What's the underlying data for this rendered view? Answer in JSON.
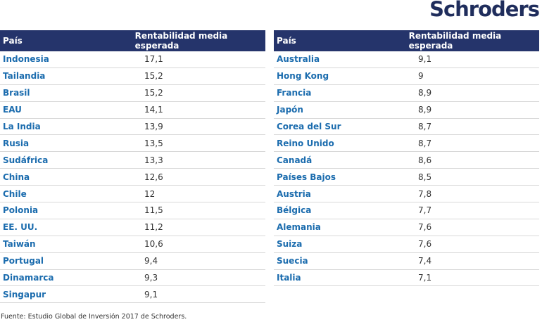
{
  "header": {
    "logo": "Schroders"
  },
  "tables": [
    {
      "columns": [
        "País",
        "Rentabilidad media esperada"
      ],
      "rows": [
        [
          "Indonesia",
          "17,1"
        ],
        [
          "Tailandia",
          "15,2"
        ],
        [
          "Brasil",
          "15,2"
        ],
        [
          "EAU",
          "14,1"
        ],
        [
          "La India",
          "13,9"
        ],
        [
          "Rusia",
          "13,5"
        ],
        [
          "Sudáfrica",
          "13,3"
        ],
        [
          "China",
          "12,6"
        ],
        [
          "Chile",
          "12"
        ],
        [
          "Polonia",
          "11,5"
        ],
        [
          "EE. UU.",
          "11,2"
        ],
        [
          "Taiwán",
          "10,6"
        ],
        [
          "Portugal",
          "9,4"
        ],
        [
          "Dinamarca",
          "9,3"
        ],
        [
          "Singapur",
          "9,1"
        ]
      ]
    },
    {
      "columns": [
        "País",
        "Rentabilidad media esperada"
      ],
      "rows": [
        [
          "Australia",
          "9,1"
        ],
        [
          "Hong Kong",
          "9"
        ],
        [
          "Francia",
          "8,9"
        ],
        [
          "Japón",
          "8,9"
        ],
        [
          "Corea del Sur",
          "8,7"
        ],
        [
          "Reino Unido",
          "8,7"
        ],
        [
          "Canadá",
          "8,6"
        ],
        [
          "Países Bajos",
          "8,5"
        ],
        [
          "Austria",
          "7,8"
        ],
        [
          "Bélgica",
          "7,7"
        ],
        [
          "Alemania",
          "7,6"
        ],
        [
          "Suiza",
          "7,6"
        ],
        [
          "Suecia",
          "7,4"
        ],
        [
          "Italia",
          "7,1"
        ]
      ]
    }
  ],
  "footer": {
    "source": "Fuente: Estudio Global de Inversión 2017 de Schroders."
  }
}
